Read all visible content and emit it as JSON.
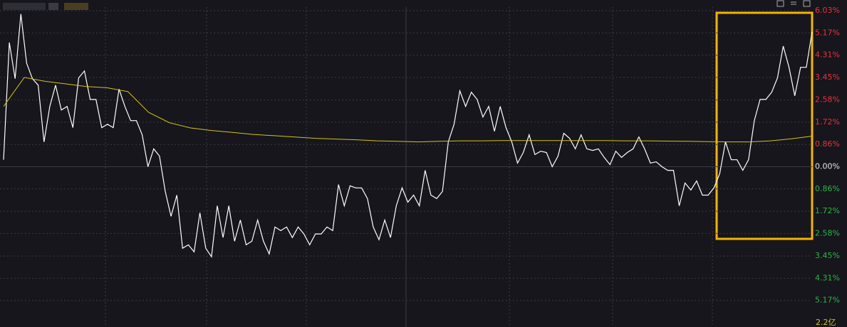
{
  "chart_data": {
    "type": "line",
    "annotation": "2.2亿",
    "ylim": [
      -6.03,
      6.03
    ],
    "yticks": [
      {
        "value": 6.03,
        "label": "6.03%"
      },
      {
        "value": 5.17,
        "label": "5.17%"
      },
      {
        "value": 4.31,
        "label": "4.31%"
      },
      {
        "value": 3.45,
        "label": "3.45%"
      },
      {
        "value": 2.58,
        "label": "2.58%"
      },
      {
        "value": 1.72,
        "label": "1.72%"
      },
      {
        "value": 0.86,
        "label": "0.86%"
      },
      {
        "value": 0,
        "label": "0.00%"
      },
      {
        "value": -0.86,
        "label": "0.86%"
      },
      {
        "value": -1.72,
        "label": "1.72%"
      },
      {
        "value": -2.58,
        "label": "2.58%"
      },
      {
        "value": -3.45,
        "label": "3.45%"
      },
      {
        "value": -4.31,
        "label": "4.31%"
      },
      {
        "value": -5.17,
        "label": "5.17%"
      }
    ],
    "grid": true,
    "up_color": "#e8323c",
    "down_color": "#2fb34a",
    "zero_color": "#e6e6e6",
    "series": [
      {
        "color": "#ffffff",
        "values": [
          0.27,
          4.8,
          3.4,
          5.9,
          4.0,
          3.4,
          3.15,
          0.96,
          2.33,
          3.15,
          2.19,
          2.33,
          1.51,
          3.43,
          3.7,
          2.6,
          2.6,
          1.51,
          1.64,
          1.51,
          3.0,
          2.33,
          1.78,
          1.78,
          1.23,
          0,
          0.69,
          0.41,
          -0.96,
          -1.92,
          -1.1,
          -3.15,
          -3.02,
          -3.29,
          -1.78,
          -3.15,
          -3.48,
          -1.51,
          -2.74,
          -1.51,
          -2.88,
          -2.06,
          -3.02,
          -2.88,
          -2.06,
          -2.88,
          -3.37,
          -2.33,
          -2.47,
          -2.33,
          -2.74,
          -2.33,
          -2.6,
          -3.02,
          -2.6,
          -2.6,
          -2.33,
          -2.47,
          -0.69,
          -1.51,
          -0.74,
          -0.82,
          -0.82,
          -1.23,
          -2.33,
          -2.82,
          -2.06,
          -2.74,
          -1.51,
          -0.82,
          -1.37,
          -1.1,
          -1.51,
          -0.14,
          -1.1,
          -1.23,
          -0.96,
          0.96,
          1.64,
          2.93,
          2.33,
          2.88,
          2.6,
          1.92,
          2.33,
          1.37,
          2.33,
          1.51,
          0.96,
          0.14,
          0.55,
          1.23,
          0.47,
          0.6,
          0.55,
          0,
          0.41,
          1.29,
          1.1,
          0.69,
          1.23,
          0.69,
          0.63,
          0.69,
          0.36,
          0.08,
          0.6,
          0.36,
          0.55,
          0.69,
          1.15,
          0.69,
          0.14,
          0.19,
          0,
          -0.14,
          -0.14,
          -1.51,
          -0.63,
          -0.9,
          -0.55,
          -1.1,
          -1.1,
          -0.82,
          -0.27,
          0.96,
          0.27,
          0.27,
          -0.14,
          0.27,
          1.78,
          2.6,
          2.6,
          2.88,
          3.43,
          4.66,
          3.84,
          2.74,
          3.84,
          3.84,
          5.21
        ]
      },
      {
        "color": "#d8c21a",
        "values": [
          2.33,
          3.45,
          3.3,
          3.2,
          3.1,
          3.05,
          2.9,
          2.1,
          1.7,
          1.5,
          1.4,
          1.33,
          1.25,
          1.2,
          1.15,
          1.1,
          1.07,
          1.04,
          1.0,
          0.98,
          0.96,
          0.98,
          1.0,
          1.0,
          1.01,
          1.01,
          1.01,
          1.01,
          1.01,
          1.01,
          1.0,
          1.0,
          0.99,
          0.98,
          0.97,
          0.96,
          0.96,
          1.0,
          1.08,
          1.18
        ]
      }
    ]
  }
}
